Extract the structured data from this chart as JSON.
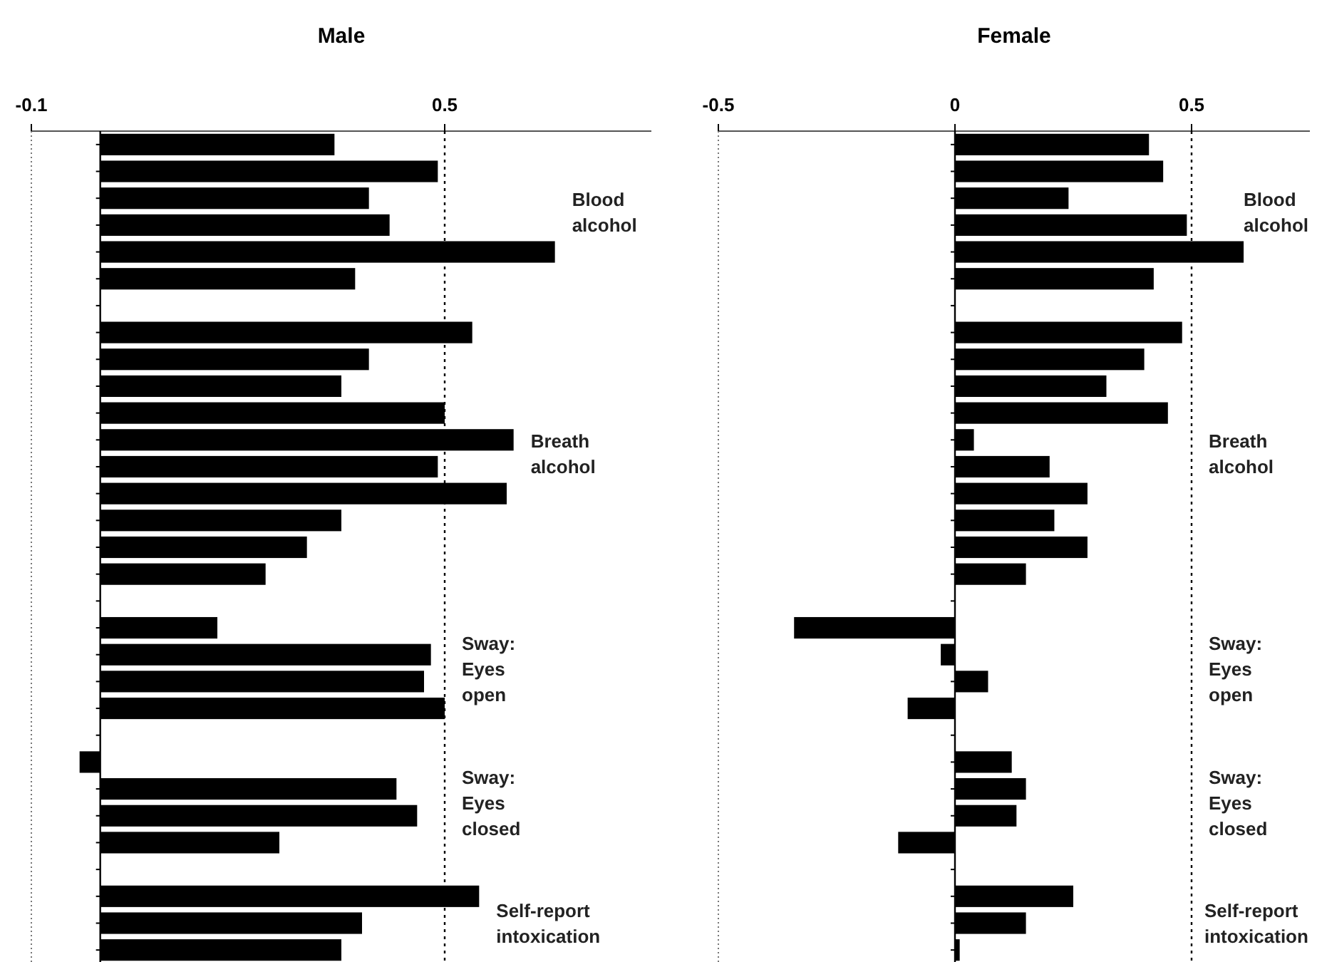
{
  "chart_data": [
    {
      "type": "bar",
      "orientation": "horizontal",
      "title": "Male",
      "categories": [
        null,
        null,
        null,
        null,
        null,
        null,
        null,
        null,
        null,
        null,
        null,
        null,
        null,
        null,
        null,
        null,
        null,
        null,
        null,
        null,
        null,
        null,
        null,
        null,
        null,
        null,
        null,
        null,
        null,
        null,
        null
      ],
      "values": [
        0.34,
        0.49,
        0.39,
        0.42,
        0.66,
        0.37,
        null,
        0.54,
        0.39,
        0.35,
        0.5,
        0.6,
        0.49,
        0.59,
        0.35,
        0.3,
        0.24,
        null,
        0.17,
        0.48,
        0.47,
        0.5,
        null,
        -0.03,
        0.43,
        0.46,
        0.26,
        null,
        0.55,
        0.38,
        0.35
      ],
      "color": "#000000",
      "xlim": [
        -0.1,
        0.8
      ],
      "xticks": [
        -0.1,
        0.5
      ],
      "ref_lines": [
        {
          "axis": "x",
          "value": 0,
          "line_style": "solid"
        },
        {
          "axis": "x",
          "value": 0.5,
          "line_style": "dotted"
        }
      ],
      "annotations": [
        "Blood\nalcohol",
        "Breath\nalcohol",
        "Sway:\nEyes\nopen",
        "Sway:\nEyes\nclosed",
        "Self-report\nintoxication"
      ]
    },
    {
      "type": "bar",
      "orientation": "horizontal",
      "title": "Female",
      "categories": [
        null,
        null,
        null,
        null,
        null,
        null,
        null,
        null,
        null,
        null,
        null,
        null,
        null,
        null,
        null,
        null,
        null,
        null,
        null,
        null,
        null,
        null,
        null,
        null,
        null,
        null,
        null,
        null,
        null,
        null,
        null
      ],
      "values": [
        0.41,
        0.44,
        0.24,
        0.49,
        0.61,
        0.42,
        null,
        0.48,
        0.4,
        0.32,
        0.45,
        0.04,
        0.2,
        0.28,
        0.21,
        0.28,
        0.15,
        null,
        -0.34,
        -0.03,
        0.07,
        -0.1,
        null,
        0.12,
        0.15,
        0.13,
        -0.12,
        null,
        0.25,
        0.15,
        0.01
      ],
      "color": "#000000",
      "xlim": [
        -0.5,
        0.75
      ],
      "xticks": [
        -0.5,
        0,
        0.5
      ],
      "ref_lines": [
        {
          "axis": "x",
          "value": 0,
          "line_style": "solid"
        },
        {
          "axis": "x",
          "value": 0.5,
          "line_style": "dotted"
        }
      ],
      "annotations": [
        "Blood\nalcohol",
        "Breath\nalcohol",
        "Sway:\nEyes\nopen",
        "Sway:\nEyes\nclosed",
        "Self-report\nintoxication"
      ]
    }
  ]
}
